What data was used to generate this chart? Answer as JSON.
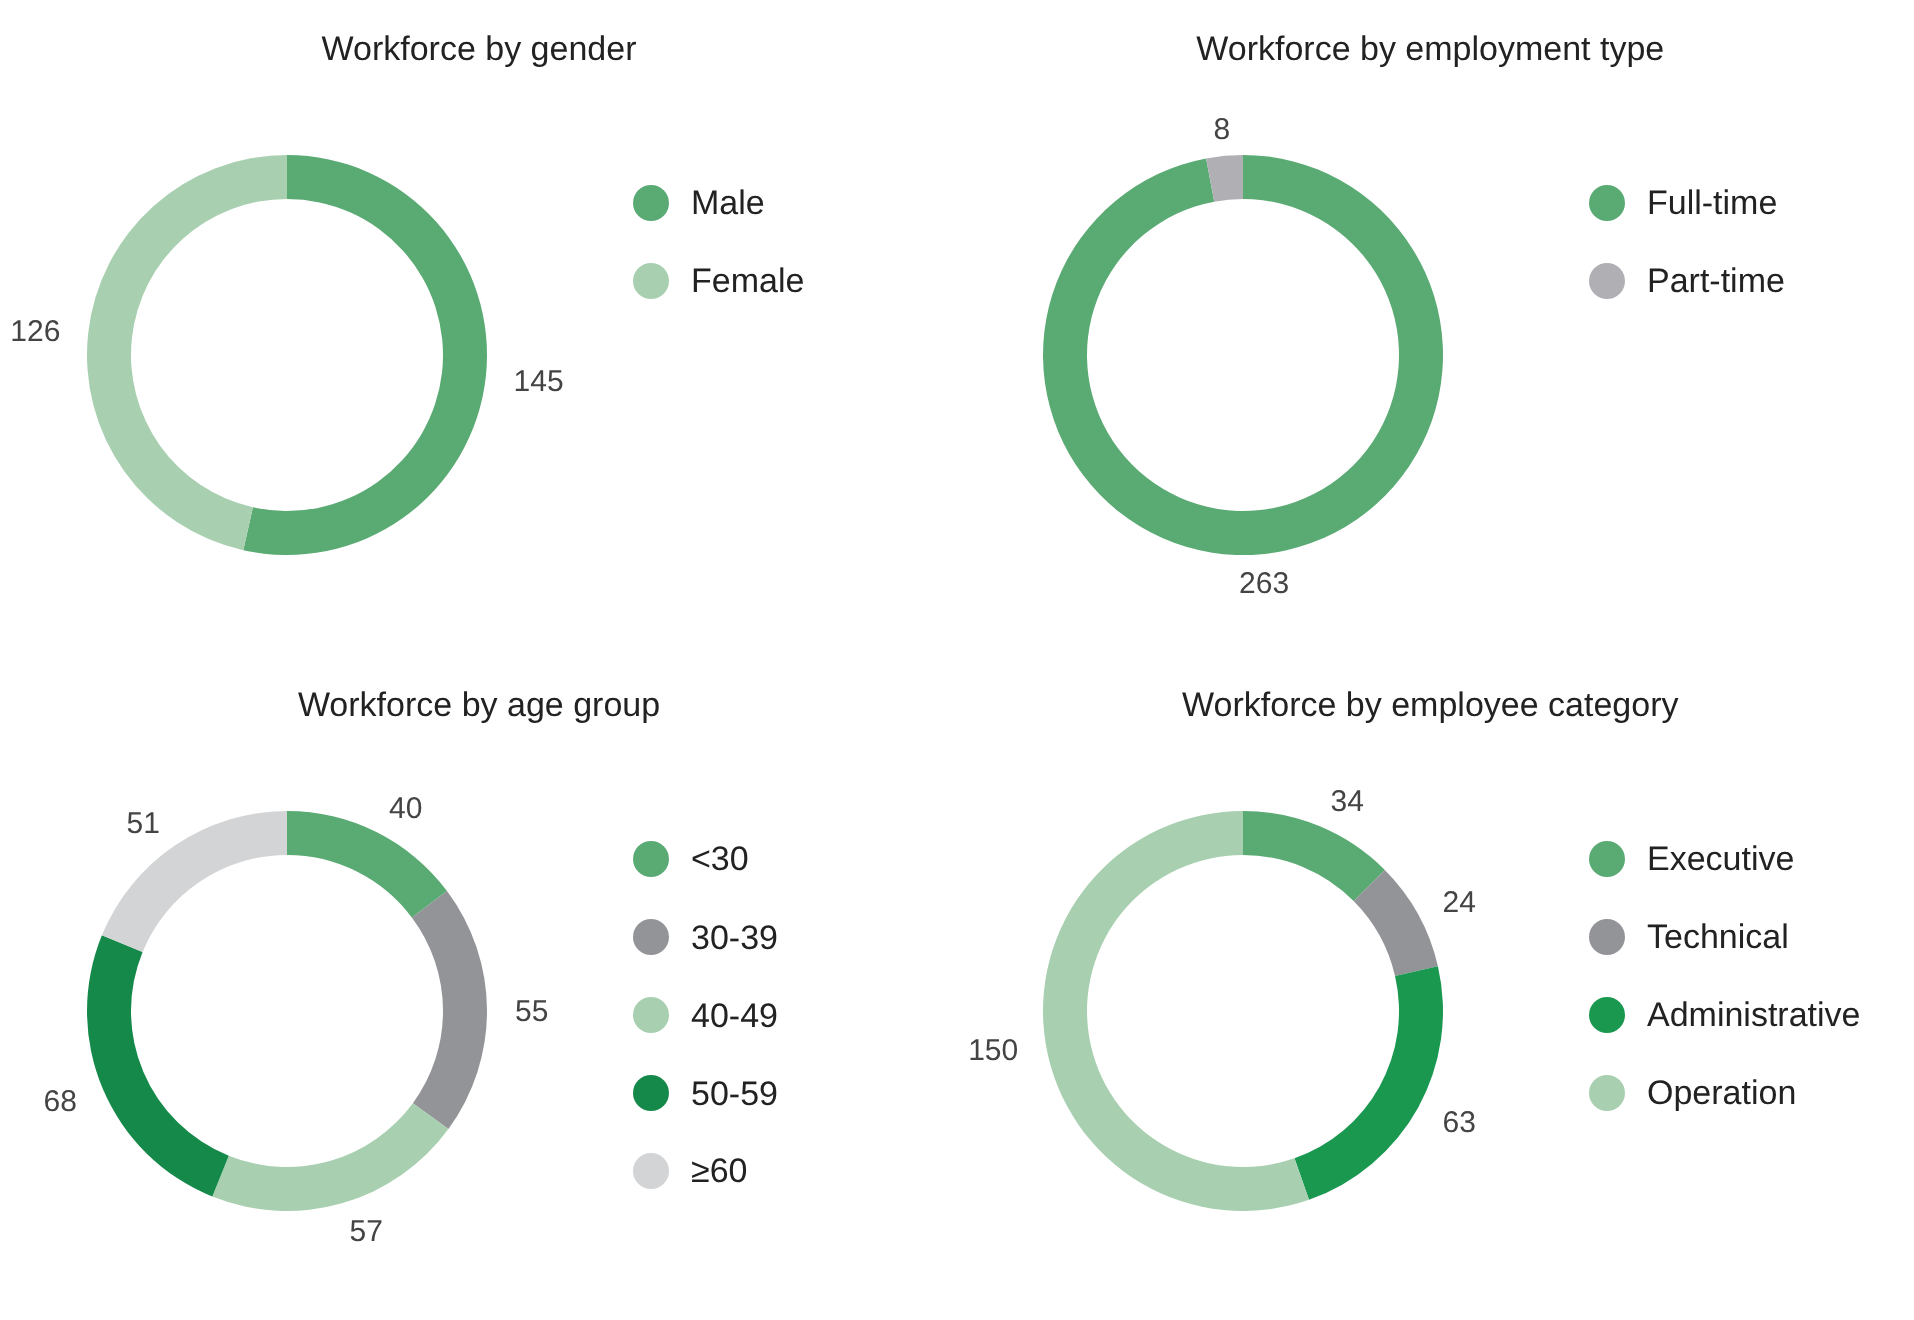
{
  "chart_data": [
    {
      "type": "donut",
      "title": "Workforce by gender",
      "categories": [
        "Male",
        "Female"
      ],
      "values": [
        145,
        126
      ],
      "colors": [
        "#5aaa73",
        "#a8d0b0"
      ],
      "data_labels": true,
      "legend": "right"
    },
    {
      "type": "donut",
      "title": "Workforce by  employment type",
      "categories": [
        "Full-time",
        "Part-time"
      ],
      "values": [
        263,
        8
      ],
      "colors": [
        "#5aaa73",
        "#b0b0b4"
      ],
      "data_labels": true,
      "legend": "right"
    },
    {
      "type": "donut",
      "title": "Workforce by age group",
      "categories": [
        "<30",
        "30-39",
        "40-49",
        "50-59",
        "≥60"
      ],
      "values": [
        40,
        55,
        57,
        68,
        51
      ],
      "colors": [
        "#5aaa73",
        "#929497",
        "#a8d0b0",
        "#15894a",
        "#d3d4d6"
      ],
      "data_labels": true,
      "legend": "right"
    },
    {
      "type": "donut",
      "title": "Workforce by  employee category",
      "categories": [
        "Executive",
        "Technical",
        "Administrative",
        "Operation"
      ],
      "values": [
        34,
        24,
        63,
        150
      ],
      "colors": [
        "#5aaa73",
        "#929497",
        "#1a9850",
        "#a8d0b0"
      ],
      "data_labels": true,
      "legend": "right"
    }
  ]
}
